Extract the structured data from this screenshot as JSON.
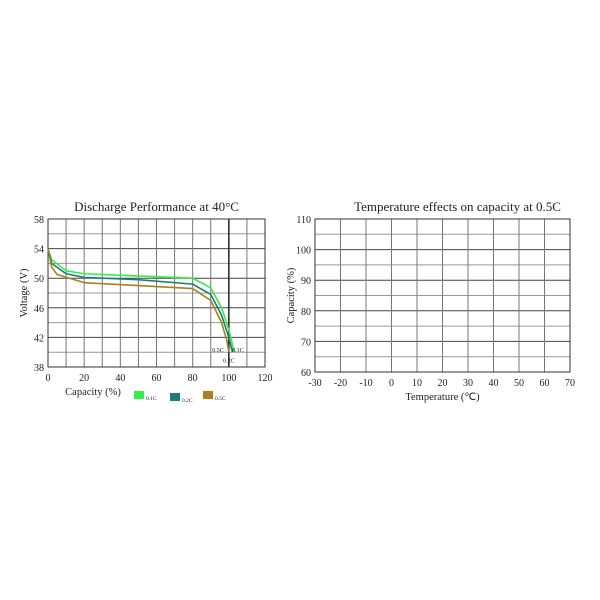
{
  "chart_data": [
    {
      "type": "line",
      "title": "Discharge Performance at 40°C",
      "xlabel": "Capacity (%)",
      "ylabel": "Voltage (V)",
      "xlim": [
        0,
        120
      ],
      "ylim": [
        38,
        58
      ],
      "xticks": [
        0,
        20,
        40,
        60,
        80,
        100,
        120
      ],
      "yticks": [
        38,
        42,
        46,
        50,
        54,
        58
      ],
      "grid": true,
      "series": [
        {
          "name": "0.1C",
          "legend": "0.1C",
          "color": "#33ee44",
          "x": [
            0,
            2,
            10,
            20,
            50,
            80,
            90,
            96,
            100,
            103
          ],
          "y": [
            54,
            52.5,
            51,
            50.6,
            50.3,
            50,
            48.7,
            46,
            43,
            40
          ]
        },
        {
          "name": "0.2C",
          "legend": "0.2C",
          "color": "#1a7f7a",
          "x": [
            0,
            2,
            10,
            20,
            50,
            80,
            90,
            96,
            100,
            102
          ],
          "y": [
            54,
            52,
            50.6,
            50.1,
            49.8,
            49.2,
            47.8,
            45,
            42,
            40
          ]
        },
        {
          "name": "0.5C",
          "legend": "0.5C",
          "color": "#b07d20",
          "x": [
            0,
            2,
            5,
            20,
            50,
            80,
            90,
            96,
            99,
            100
          ],
          "y": [
            54,
            51.5,
            50.5,
            49.4,
            49,
            48.6,
            47,
            44,
            41.5,
            40
          ]
        }
      ],
      "annotations": [
        {
          "text": "0.5C",
          "x": 94,
          "y": 40
        },
        {
          "text": "0.1C",
          "x": 105,
          "y": 40
        },
        {
          "text": "0.2C",
          "x": 100,
          "y": 38.6
        }
      ]
    },
    {
      "type": "line",
      "title": "Temperature effects on capacity at 0.5C",
      "xlabel": "Temperature (℃)",
      "ylabel": "Capacity (%)",
      "xlim": [
        -30,
        70
      ],
      "ylim": [
        60,
        110
      ],
      "xticks": [
        -30,
        -20,
        -10,
        0,
        10,
        20,
        30,
        40,
        50,
        60,
        70
      ],
      "yticks": [
        60,
        70,
        80,
        90,
        100,
        110
      ],
      "grid": true,
      "series": []
    }
  ]
}
